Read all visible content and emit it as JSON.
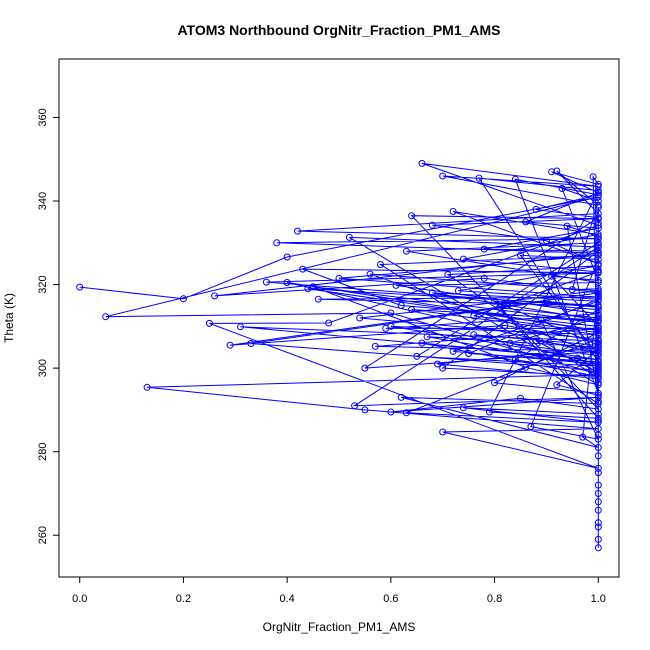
{
  "chart_data": {
    "type": "line",
    "title": "ATOM3 Northbound OrgNitr_Fraction_PM1_AMS",
    "xlabel": "OrgNitr_Fraction_PM1_AMS",
    "ylabel": "Theta (K)",
    "xlim": [
      -0.04,
      1.04
    ],
    "ylim": [
      250,
      374
    ],
    "xticks": [
      "0.0",
      "0.2",
      "0.4",
      "0.6",
      "0.8",
      "1.0"
    ],
    "yticks": [
      "260",
      "280",
      "300",
      "320",
      "340",
      "360"
    ],
    "grid": false,
    "line_color": "#0000ff",
    "marker": "open-circle",
    "series": [
      {
        "values": [
          [
            0.0,
            319.4
          ],
          [
            0.2,
            316.6
          ],
          [
            0.4,
            326.6
          ],
          [
            1.0,
            341.0
          ],
          [
            0.05,
            312.3
          ],
          [
            0.6,
            313.2
          ],
          [
            1.0,
            298.5
          ],
          [
            0.13,
            295.4
          ],
          [
            0.55,
            290.0
          ],
          [
            1.0,
            285.5
          ],
          [
            0.7,
            284.7
          ],
          [
            1.0,
            276.0
          ],
          [
            0.25,
            310.7
          ],
          [
            0.48,
            310.8
          ],
          [
            1.0,
            334.2
          ],
          [
            0.66,
            349.0
          ],
          [
            1.0,
            343.5
          ],
          [
            0.7,
            346.0
          ],
          [
            1.0,
            339.0
          ],
          [
            0.92,
            347.2
          ],
          [
            1.0,
            337.0
          ],
          [
            0.42,
            332.8
          ],
          [
            1.0,
            331.0
          ],
          [
            0.38,
            330.0
          ],
          [
            1.0,
            327.5
          ],
          [
            0.26,
            317.3
          ],
          [
            0.78,
            321.5
          ],
          [
            1.0,
            318.0
          ],
          [
            0.29,
            305.5
          ],
          [
            0.82,
            310.2
          ],
          [
            1.0,
            306.5
          ],
          [
            0.31,
            309.9
          ],
          [
            0.96,
            302.4
          ],
          [
            1.0,
            299.5
          ],
          [
            0.33,
            305.9
          ],
          [
            0.9,
            316.0
          ],
          [
            1.0,
            314.6
          ],
          [
            0.36,
            320.6
          ],
          [
            1.0,
            322.8
          ],
          [
            0.43,
            323.7
          ],
          [
            0.62,
            315.0
          ],
          [
            1.0,
            311.0
          ],
          [
            0.45,
            319.5
          ],
          [
            0.86,
            300.2
          ],
          [
            1.0,
            296.0
          ],
          [
            0.52,
            331.3
          ],
          [
            1.0,
            329.0
          ],
          [
            0.53,
            291.0
          ],
          [
            1.0,
            293.0
          ],
          [
            0.6,
            289.5
          ],
          [
            0.85,
            292.8
          ],
          [
            1.0,
            290.2
          ],
          [
            0.64,
            336.5
          ],
          [
            1.0,
            335.8
          ],
          [
            0.68,
            334.2
          ],
          [
            0.9,
            330.5
          ],
          [
            1.0,
            325.0
          ],
          [
            0.72,
            337.5
          ],
          [
            1.0,
            332.0
          ],
          [
            0.74,
            326.1
          ],
          [
            1.0,
            323.0
          ],
          [
            0.76,
            312.5
          ],
          [
            1.0,
            308.5
          ],
          [
            0.8,
            296.5
          ],
          [
            1.0,
            294.0
          ],
          [
            0.84,
            345.2
          ],
          [
            1.0,
            341.5
          ],
          [
            0.88,
            338.0
          ],
          [
            1.0,
            336.0
          ],
          [
            0.55,
            300.0
          ],
          [
            1.0,
            304.0
          ],
          [
            0.57,
            305.2
          ],
          [
            1.0,
            309.5
          ],
          [
            0.59,
            309.5
          ],
          [
            1.0,
            313.0
          ],
          [
            0.61,
            319.8
          ],
          [
            1.0,
            320.5
          ],
          [
            0.63,
            328.0
          ],
          [
            1.0,
            330.0
          ],
          [
            0.65,
            302.8
          ],
          [
            1.0,
            300.5
          ],
          [
            0.67,
            307.5
          ],
          [
            1.0,
            305.0
          ],
          [
            0.69,
            301.0
          ],
          [
            1.0,
            297.5
          ],
          [
            0.71,
            322.4
          ],
          [
            1.0,
            324.5
          ],
          [
            0.73,
            318.5
          ],
          [
            1.0,
            316.5
          ],
          [
            0.75,
            303.5
          ],
          [
            1.0,
            301.5
          ],
          [
            0.77,
            345.5
          ],
          [
            1.0,
            342.5
          ],
          [
            0.79,
            289.5
          ],
          [
            1.0,
            288.0
          ],
          [
            0.81,
            314.5
          ],
          [
            1.0,
            312.0
          ],
          [
            0.83,
            306.0
          ],
          [
            1.0,
            303.0
          ],
          [
            0.85,
            327.0
          ],
          [
            1.0,
            326.0
          ],
          [
            0.87,
            286.0
          ],
          [
            1.0,
            283.0
          ],
          [
            0.89,
            311.5
          ],
          [
            1.0,
            310.0
          ],
          [
            0.91,
            322.0
          ],
          [
            1.0,
            321.0
          ],
          [
            0.93,
            343.0
          ],
          [
            1.0,
            340.0
          ],
          [
            0.95,
            318.8
          ],
          [
            1.0,
            319.0
          ],
          [
            0.97,
            283.5
          ],
          [
            1.0,
            281.0
          ],
          [
            0.62,
            293.0
          ],
          [
            1.0,
            291.5
          ],
          [
            0.58,
            324.8
          ],
          [
            1.0,
            327.0
          ],
          [
            0.5,
            321.5
          ],
          [
            1.0,
            317.0
          ],
          [
            0.46,
            316.5
          ],
          [
            1.0,
            315.0
          ],
          [
            0.44,
            319.0
          ],
          [
            1.0,
            309.0
          ],
          [
            0.4,
            320.5
          ],
          [
            1.0,
            303.5
          ],
          [
            0.56,
            322.5
          ],
          [
            1.0,
            318.5
          ],
          [
            0.54,
            312.0
          ],
          [
            1.0,
            307.0
          ],
          [
            0.63,
            289.3
          ],
          [
            1.0,
            287.0
          ],
          [
            0.74,
            290.5
          ],
          [
            1.0,
            289.0
          ],
          [
            0.99,
            345.8
          ],
          [
            1.0,
            344.0
          ],
          [
            0.91,
            347.0
          ],
          [
            1.0,
            342.0
          ],
          [
            0.86,
            335.0
          ],
          [
            1.0,
            333.5
          ],
          [
            0.78,
            328.5
          ],
          [
            1.0,
            328.0
          ],
          [
            0.7,
            300.0
          ],
          [
            1.0,
            298.0
          ],
          [
            0.66,
            306.0
          ],
          [
            1.0,
            302.0
          ],
          [
            0.6,
            310.0
          ],
          [
            1.0,
            308.0
          ],
          [
            0.64,
            314.0
          ],
          [
            1.0,
            311.5
          ],
          [
            0.68,
            318.0
          ],
          [
            1.0,
            316.0
          ],
          [
            0.72,
            304.0
          ],
          [
            1.0,
            301.0
          ],
          [
            0.76,
            308.0
          ],
          [
            1.0,
            305.5
          ],
          [
            0.8,
            316.0
          ],
          [
            1.0,
            314.0
          ],
          [
            0.84,
            302.0
          ],
          [
            1.0,
            299.0
          ],
          [
            0.88,
            306.5
          ],
          [
            1.0,
            304.5
          ],
          [
            0.92,
            296.0
          ],
          [
            1.0,
            293.5
          ],
          [
            0.94,
            334.0
          ],
          [
            1.0,
            331.5
          ],
          [
            1.0,
            272.0
          ],
          [
            1.0,
            268.0
          ],
          [
            1.0,
            263.0
          ],
          [
            1.0,
            259.0
          ],
          [
            1.0,
            257.0
          ],
          [
            1.0,
            262.0
          ],
          [
            1.0,
            266.0
          ],
          [
            1.0,
            270.0
          ],
          [
            1.0,
            275.0
          ],
          [
            1.0,
            279.0
          ],
          [
            1.0,
            284.0
          ],
          [
            1.0,
            287.5
          ],
          [
            1.0,
            292.0
          ],
          [
            1.0,
            296.5
          ],
          [
            1.0,
            300.0
          ],
          [
            1.0,
            306.0
          ],
          [
            1.0,
            312.5
          ],
          [
            1.0,
            317.5
          ],
          [
            1.0,
            323.5
          ],
          [
            1.0,
            329.5
          ],
          [
            1.0,
            334.8
          ],
          [
            1.0,
            338.5
          ]
        ]
      }
    ]
  }
}
